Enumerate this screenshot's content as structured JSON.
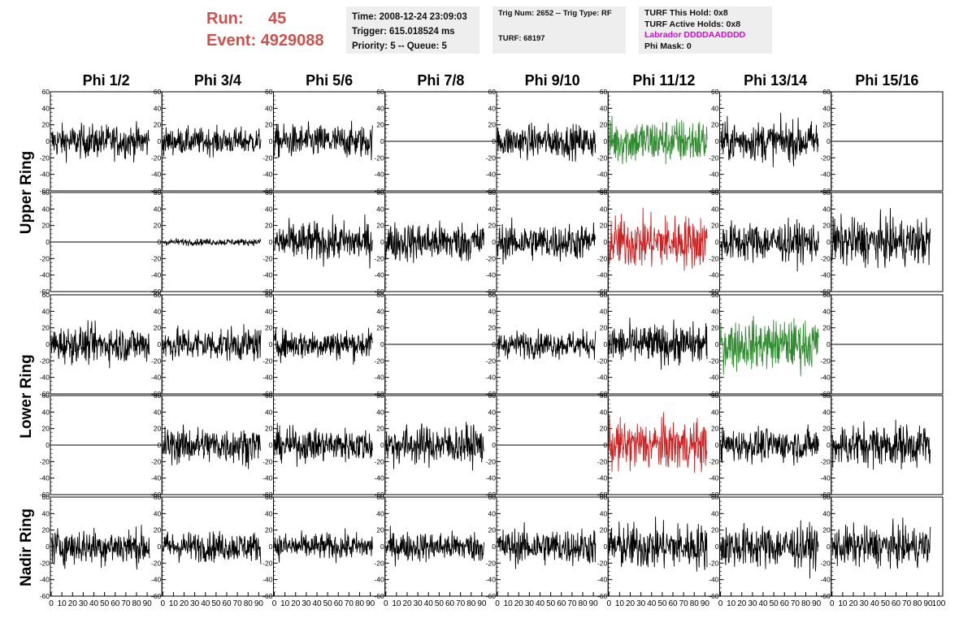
{
  "header": {
    "run_label": "Run:",
    "run_value": "45",
    "event_label": "Event:",
    "event_value": "4929088",
    "time": "Time: 2008-12-24 23:09:03",
    "trigger": "Trigger: 615.018524 ms",
    "priority": "Priority: 5 -- Queue: 5",
    "trig_num": "Trig Num: 2652 -- Trig Type: RF",
    "turf": "TURF: 68197",
    "turf_this_hold": "TURF This Hold: 0x8",
    "turf_active_holds": "TURF Active Holds: 0x8",
    "labrador": "Labrador DDDDAADDDD",
    "phi_mask": "Phi Mask: 0"
  },
  "colors": {
    "run_text": "#d0504c",
    "labrador_text": "#e000e0",
    "trace_default": "#000000",
    "trace_green": "#2e8b2e",
    "trace_red": "#cc2222",
    "info_box_bg": "#eeeeee"
  },
  "chart_data": {
    "type": "line",
    "columns": [
      "Phi 1/2",
      "Phi 3/4",
      "Phi 5/6",
      "Phi 7/8",
      "Phi 9/10",
      "Phi 11/12",
      "Phi 13/14",
      "Phi 15/16"
    ],
    "row_groups": [
      {
        "label": "Upper Ring",
        "rows": [
          0,
          1
        ]
      },
      {
        "label": "Lower Ring",
        "rows": [
          2,
          3
        ]
      },
      {
        "label": "Nadir Ring",
        "rows": [
          4
        ]
      }
    ],
    "ylim": [
      -60,
      60
    ],
    "yticks": [
      -60,
      -40,
      -20,
      0,
      20,
      40,
      60
    ],
    "xlim": [
      0,
      100
    ],
    "xticks": [
      0,
      10,
      20,
      30,
      40,
      50,
      60,
      70,
      80,
      90,
      100
    ],
    "x_extent": 92,
    "samples": 260,
    "panels": [
      [
        {
          "amp": 10,
          "color": "black"
        },
        {
          "amp": 8,
          "color": "black"
        },
        {
          "amp": 10,
          "color": "black"
        },
        {
          "amp": 0,
          "color": "black"
        },
        {
          "amp": 10,
          "color": "black"
        },
        {
          "amp": 14,
          "color": "green"
        },
        {
          "amp": 12,
          "color": "black"
        },
        {
          "amp": 0,
          "color": "black"
        }
      ],
      [
        {
          "amp": 0,
          "color": "black"
        },
        {
          "amp": 2,
          "color": "black"
        },
        {
          "amp": 12,
          "color": "black"
        },
        {
          "amp": 12,
          "color": "black"
        },
        {
          "amp": 11,
          "color": "black"
        },
        {
          "amp": 16,
          "color": "red"
        },
        {
          "amp": 12,
          "color": "black"
        },
        {
          "amp": 14,
          "color": "black"
        }
      ],
      [
        {
          "amp": 11,
          "color": "black"
        },
        {
          "amp": 10,
          "color": "black"
        },
        {
          "amp": 9,
          "color": "black"
        },
        {
          "amp": 0,
          "color": "black"
        },
        {
          "amp": 8,
          "color": "black"
        },
        {
          "amp": 12,
          "color": "black"
        },
        {
          "amp": 15,
          "color": "green"
        },
        {
          "amp": 0,
          "color": "black"
        }
      ],
      [
        {
          "amp": 0,
          "color": "black"
        },
        {
          "amp": 11,
          "color": "black"
        },
        {
          "amp": 10,
          "color": "black"
        },
        {
          "amp": 12,
          "color": "black"
        },
        {
          "amp": 0,
          "color": "black"
        },
        {
          "amp": 15,
          "color": "red"
        },
        {
          "amp": 10,
          "color": "black"
        },
        {
          "amp": 13,
          "color": "black"
        }
      ],
      [
        {
          "amp": 11,
          "color": "black"
        },
        {
          "amp": 9,
          "color": "black"
        },
        {
          "amp": 8,
          "color": "black"
        },
        {
          "amp": 9,
          "color": "black"
        },
        {
          "amp": 11,
          "color": "black"
        },
        {
          "amp": 14,
          "color": "black"
        },
        {
          "amp": 13,
          "color": "black"
        },
        {
          "amp": 12,
          "color": "black"
        }
      ]
    ]
  }
}
